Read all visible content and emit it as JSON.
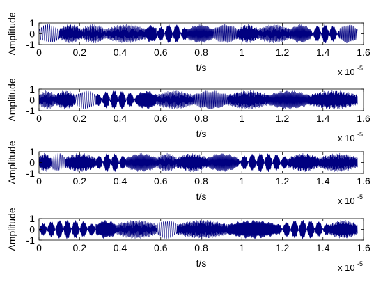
{
  "chart_data": [
    {
      "type": "line",
      "ylabel": "Amplitude",
      "xlabel": "t/s",
      "x_scale_label": "x 10",
      "x_scale_exponent": "-5",
      "xlim": [
        0,
        1.6
      ],
      "ylim": [
        -1,
        1
      ],
      "xticks": [
        "0",
        "0.2",
        "0.4",
        "0.6",
        "0.8",
        "1",
        "1.2",
        "1.4",
        "1.6"
      ],
      "yticks": [
        "1",
        "0",
        "-1"
      ],
      "grid": false,
      "line_color": "#000080",
      "series": [
        {
          "segments": [
            {
              "start": 0.0,
              "end": 0.1,
              "freq": 1
            },
            {
              "start": 0.1,
              "end": 0.21,
              "freq": 6
            },
            {
              "start": 0.21,
              "end": 0.33,
              "freq": 9
            },
            {
              "start": 0.33,
              "end": 0.53,
              "freq": 7
            },
            {
              "start": 0.53,
              "end": 0.58,
              "freq": 4
            },
            {
              "start": 0.58,
              "end": 0.73,
              "freq": 8
            },
            {
              "start": 0.73,
              "end": 0.86,
              "freq": 3
            },
            {
              "start": 0.86,
              "end": 0.98,
              "freq": 2
            },
            {
              "start": 0.98,
              "end": 1.08,
              "freq": 5
            },
            {
              "start": 1.08,
              "end": 1.24,
              "freq": 7
            },
            {
              "start": 1.24,
              "end": 1.34,
              "freq": 3
            },
            {
              "start": 1.34,
              "end": 1.48,
              "freq": 8
            },
            {
              "start": 1.48,
              "end": 1.57,
              "freq": 2
            }
          ]
        }
      ]
    },
    {
      "type": "line",
      "ylabel": "Amplitude",
      "xlabel": "t/s",
      "x_scale_label": "x 10",
      "x_scale_exponent": "-5",
      "xlim": [
        0,
        1.6
      ],
      "ylim": [
        -1,
        1
      ],
      "xticks": [
        "0",
        "0.2",
        "0.4",
        "0.6",
        "0.8",
        "1",
        "1.2",
        "1.4",
        "1.6"
      ],
      "yticks": [
        "1",
        "0",
        "-1"
      ],
      "grid": false,
      "line_color": "#000080",
      "series": [
        {
          "segments": [
            {
              "start": 0.0,
              "end": 0.08,
              "freq": 7
            },
            {
              "start": 0.08,
              "end": 0.18,
              "freq": 5
            },
            {
              "start": 0.18,
              "end": 0.28,
              "freq": 1
            },
            {
              "start": 0.28,
              "end": 0.48,
              "freq": 8
            },
            {
              "start": 0.48,
              "end": 0.58,
              "freq": 4
            },
            {
              "start": 0.58,
              "end": 0.76,
              "freq": 7
            },
            {
              "start": 0.76,
              "end": 0.93,
              "freq": 2
            },
            {
              "start": 0.93,
              "end": 1.13,
              "freq": 6
            },
            {
              "start": 1.13,
              "end": 1.33,
              "freq": 3
            },
            {
              "start": 1.33,
              "end": 1.57,
              "freq": 5
            }
          ]
        }
      ]
    },
    {
      "type": "line",
      "ylabel": "Amplitude",
      "xlabel": "t/s",
      "x_scale_label": "x 10",
      "x_scale_exponent": "-5",
      "xlim": [
        0,
        1.6
      ],
      "ylim": [
        -1,
        1
      ],
      "xticks": [
        "0",
        "0.2",
        "0.4",
        "0.6",
        "0.8",
        "1",
        "1.2",
        "1.4",
        "1.6"
      ],
      "yticks": [
        "1",
        "0",
        "-1"
      ],
      "grid": false,
      "line_color": "#000080",
      "series": [
        {
          "segments": [
            {
              "start": 0.0,
              "end": 0.06,
              "freq": 5
            },
            {
              "start": 0.06,
              "end": 0.13,
              "freq": 1
            },
            {
              "start": 0.13,
              "end": 0.28,
              "freq": 5
            },
            {
              "start": 0.28,
              "end": 0.43,
              "freq": 8
            },
            {
              "start": 0.43,
              "end": 0.58,
              "freq": 3
            },
            {
              "start": 0.58,
              "end": 0.68,
              "freq": 7
            },
            {
              "start": 0.68,
              "end": 0.83,
              "freq": 5
            },
            {
              "start": 0.83,
              "end": 0.98,
              "freq": 3
            },
            {
              "start": 0.98,
              "end": 1.23,
              "freq": 8
            },
            {
              "start": 1.23,
              "end": 1.38,
              "freq": 5
            },
            {
              "start": 1.38,
              "end": 1.57,
              "freq": 6
            }
          ]
        }
      ]
    },
    {
      "type": "line",
      "ylabel": "Amplitude",
      "xlabel": "t/s",
      "x_scale_label": "x 10",
      "x_scale_exponent": "-5",
      "xlim": [
        0,
        1.6
      ],
      "ylim": [
        -1,
        1
      ],
      "xticks": [
        "0",
        "0.2",
        "0.4",
        "0.6",
        "0.8",
        "1",
        "1.2",
        "1.4",
        "1.6"
      ],
      "yticks": [
        "1",
        "0",
        "-1"
      ],
      "grid": false,
      "line_color": "#000080",
      "series": [
        {
          "segments": [
            {
              "start": 0.0,
              "end": 0.28,
              "freq": 8
            },
            {
              "start": 0.28,
              "end": 0.38,
              "freq": 4
            },
            {
              "start": 0.38,
              "end": 0.58,
              "freq": 7
            },
            {
              "start": 0.58,
              "end": 0.68,
              "freq": 1
            },
            {
              "start": 0.68,
              "end": 0.93,
              "freq": 6
            },
            {
              "start": 0.93,
              "end": 1.18,
              "freq": 4
            },
            {
              "start": 1.18,
              "end": 1.43,
              "freq": 8
            },
            {
              "start": 1.43,
              "end": 1.57,
              "freq": 5
            }
          ]
        }
      ]
    }
  ]
}
